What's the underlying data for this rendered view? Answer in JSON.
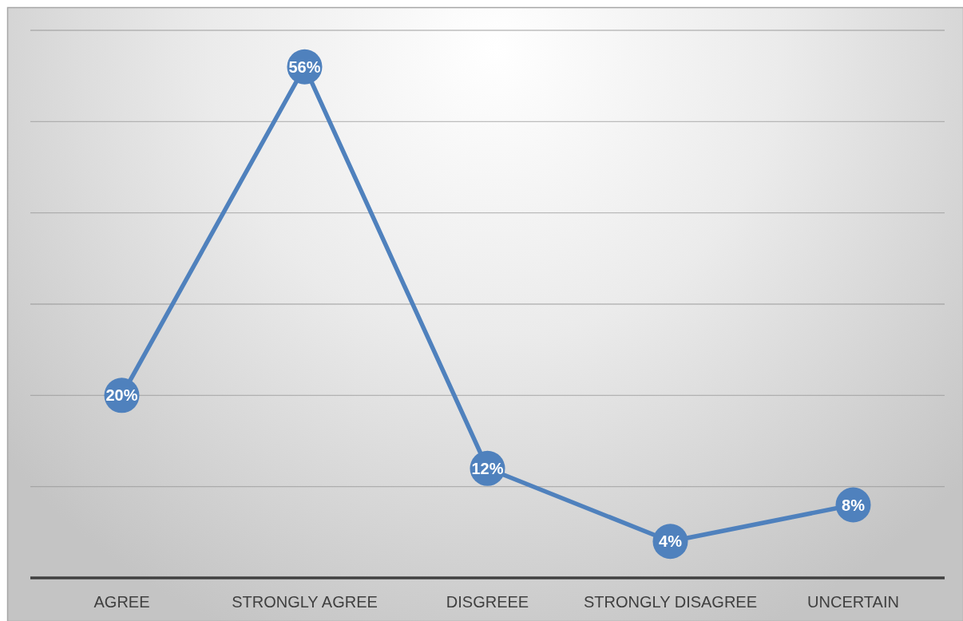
{
  "chart_data": {
    "type": "line",
    "categories": [
      "AGREE",
      "STRONGLY AGREE",
      "DISGREEE",
      "STRONGLY DISAGREE",
      "UNCERTAIN"
    ],
    "values": [
      20,
      56,
      12,
      4,
      8
    ],
    "color": "#4f81bd",
    "value_labels": [
      "20%",
      "56%",
      "12%",
      "4%",
      "8%"
    ],
    "ylim": [
      0,
      60
    ],
    "yticks": [
      {
        "value": 10,
        "label": null
      },
      {
        "value": 20,
        "label": null
      },
      {
        "value": 30,
        "label": null
      },
      {
        "value": 40,
        "label": null
      },
      {
        "value": 50,
        "label": null
      },
      {
        "value": 60,
        "label": null
      }
    ],
    "grid": "y",
    "tick_labels": "x",
    "marker": "circle",
    "line_style": "solid"
  }
}
